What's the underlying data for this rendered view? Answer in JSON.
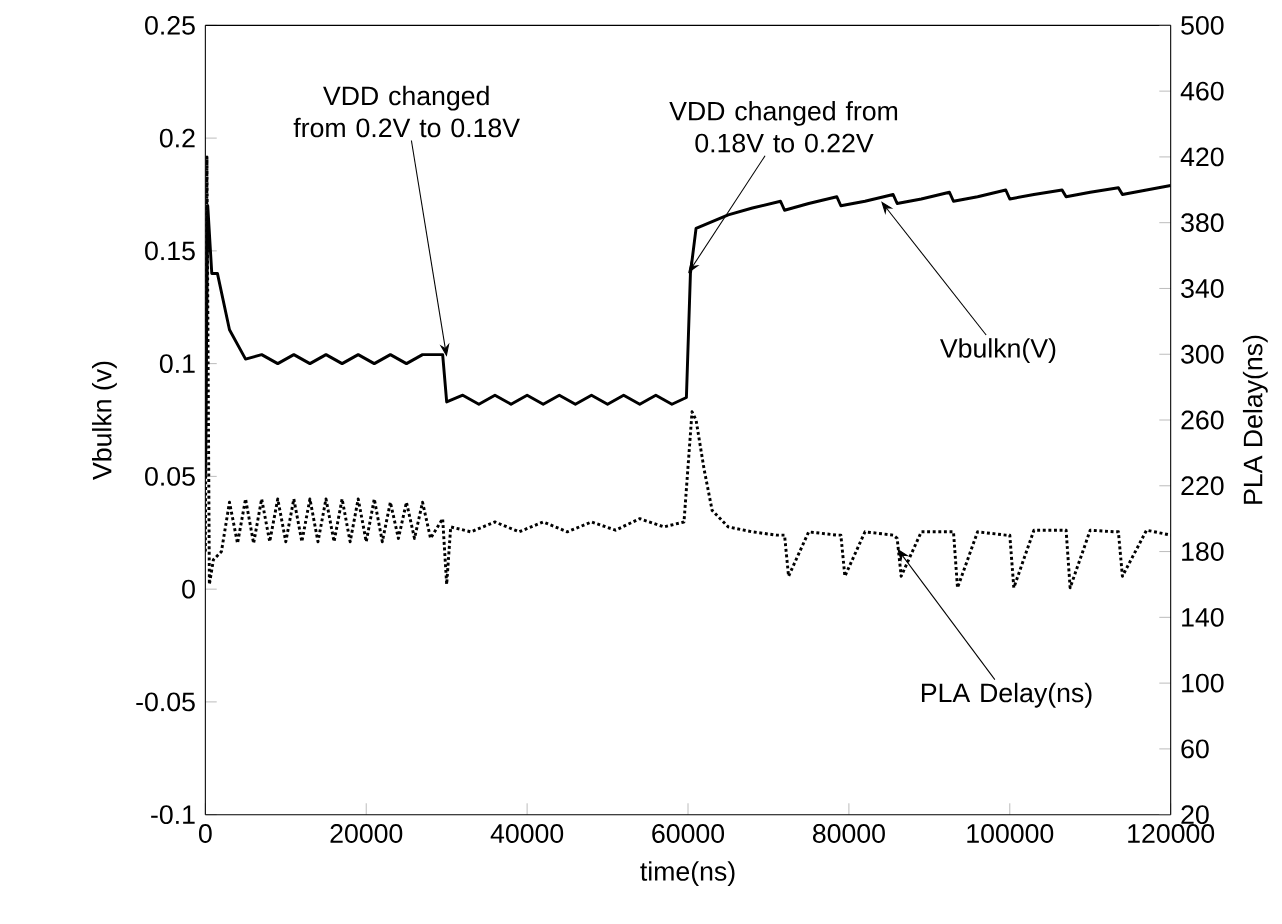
{
  "chart_data": {
    "type": "line",
    "xlabel": "time(ns)",
    "ylabel": "Vbulkn (v)",
    "y2label": "PLA Delay(ns)",
    "xlim": [
      0,
      120000
    ],
    "xticks": [
      0,
      20000,
      40000,
      60000,
      80000,
      100000,
      120000
    ],
    "ylim": [
      -0.1,
      0.25
    ],
    "yticks": [
      -0.1,
      -0.05,
      0,
      0.05,
      0.1,
      0.15,
      0.2,
      0.25
    ],
    "y2lim": [
      20,
      500
    ],
    "y2ticks": [
      20,
      60,
      100,
      140,
      180,
      220,
      260,
      300,
      340,
      380,
      420,
      460,
      500
    ],
    "grid": false,
    "series": [
      {
        "color": "#000000",
        "line_style": "solid",
        "x": [
          0,
          300,
          800,
          1500,
          3000,
          5000,
          7000,
          9000,
          11000,
          13000,
          15000,
          17000,
          19000,
          21000,
          23000,
          25000,
          27000,
          29500,
          30000,
          32000,
          34000,
          36000,
          38000,
          40000,
          42000,
          44000,
          46000,
          48000,
          50000,
          52000,
          54000,
          56000,
          58000,
          59800,
          60300,
          61000,
          63000,
          65000,
          68000,
          71500,
          72000,
          75000,
          78500,
          79000,
          82000,
          85500,
          86000,
          89000,
          92500,
          93000,
          96000,
          99500,
          100000,
          103000,
          106500,
          107000,
          110000,
          113500,
          114000,
          117000,
          120000
        ],
        "values": [
          0.05,
          0.17,
          0.14,
          0.14,
          0.115,
          0.102,
          0.104,
          0.1,
          0.104,
          0.1,
          0.104,
          0.1,
          0.104,
          0.1,
          0.104,
          0.1,
          0.104,
          0.104,
          0.083,
          0.086,
          0.082,
          0.086,
          0.082,
          0.086,
          0.082,
          0.086,
          0.082,
          0.086,
          0.082,
          0.086,
          0.082,
          0.086,
          0.082,
          0.085,
          0.14,
          0.16,
          0.163,
          0.166,
          0.169,
          0.172,
          0.168,
          0.171,
          0.174,
          0.17,
          0.172,
          0.175,
          0.171,
          0.173,
          0.176,
          0.172,
          0.174,
          0.177,
          0.173,
          0.175,
          0.177,
          0.174,
          0.176,
          0.178,
          0.175,
          0.177,
          0.179
        ]
      },
      {
        "color": "#000000",
        "line_style": "dotted",
        "axis": "y2",
        "x": [
          0,
          200,
          500,
          1000,
          2000,
          3000,
          4000,
          5000,
          6000,
          7000,
          8000,
          9000,
          10000,
          11000,
          12000,
          13000,
          14000,
          15000,
          16000,
          17000,
          18000,
          19000,
          20000,
          21000,
          22000,
          23000,
          24000,
          25000,
          26000,
          27000,
          28000,
          29500,
          30000,
          30500,
          33000,
          36000,
          39000,
          42000,
          45000,
          48000,
          51000,
          54000,
          57000,
          59500,
          60500,
          61000,
          62000,
          63000,
          65000,
          68000,
          71000,
          72000,
          72500,
          75000,
          78500,
          79000,
          79500,
          82000,
          85500,
          86000,
          86500,
          89000,
          92500,
          93000,
          93500,
          96000,
          99500,
          100000,
          100500,
          103000,
          106500,
          107000,
          107500,
          110000,
          113000,
          113500,
          114000,
          117000,
          120000
        ],
        "values": [
          180,
          420,
          160,
          175,
          180,
          210,
          185,
          212,
          185,
          212,
          186,
          212,
          186,
          212,
          186,
          212,
          186,
          212,
          186,
          212,
          186,
          212,
          186,
          212,
          186,
          210,
          188,
          210,
          188,
          210,
          188,
          200,
          160,
          195,
          192,
          198,
          192,
          198,
          192,
          198,
          193,
          200,
          195,
          198,
          265,
          260,
          230,
          205,
          195,
          192,
          190,
          190,
          165,
          192,
          190,
          190,
          165,
          192,
          190,
          188,
          165,
          192,
          192,
          192,
          158,
          192,
          190,
          190,
          158,
          193,
          193,
          193,
          158,
          193,
          192,
          192,
          165,
          193,
          190
        ]
      }
    ],
    "annotations": [
      {
        "text": "VDD changed from 0.2V to 0.18V",
        "x": 30000,
        "y": 0.103
      },
      {
        "text": "VDD changed from 0.18V to 0.22V",
        "x": 60000,
        "y": 0.14
      },
      {
        "text": "Vbulkn(V)",
        "x": 84000,
        "y": 0.172
      },
      {
        "text": "PLA Delay(ns)",
        "x": 86000,
        "y": 0.018
      }
    ]
  }
}
